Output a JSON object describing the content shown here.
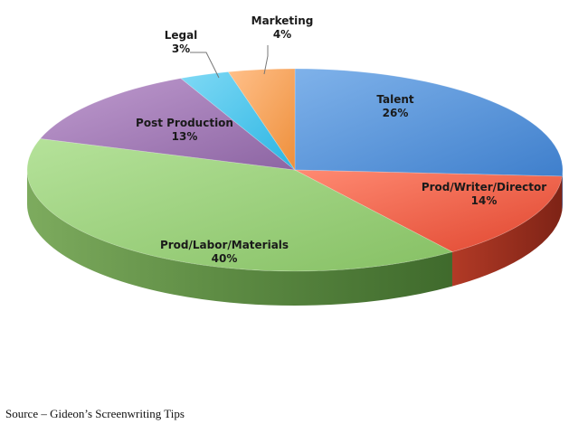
{
  "chart_data": {
    "type": "pie",
    "style": "3d",
    "title": "",
    "legend": "none",
    "slices": [
      {
        "label": "Talent",
        "value": 26,
        "value_label": "26%",
        "color": "#5b97dc"
      },
      {
        "label": "Prod/Writer/Director",
        "value": 14,
        "value_label": "14%",
        "color": "#f0674f"
      },
      {
        "label": "Prod/Labor/Materials",
        "value": 40,
        "value_label": "40%",
        "color": "#9fd27f"
      },
      {
        "label": "Post Production",
        "value": 13,
        "value_label": "13%",
        "color": "#a57bb8"
      },
      {
        "label": "Legal",
        "value": 3,
        "value_label": "3%",
        "color": "#44c6ee"
      },
      {
        "label": "Marketing",
        "value": 4,
        "value_label": "4%",
        "color": "#f7a35a"
      }
    ]
  },
  "footer": {
    "source": "Source – Gideon’s Screenwriting Tips"
  }
}
